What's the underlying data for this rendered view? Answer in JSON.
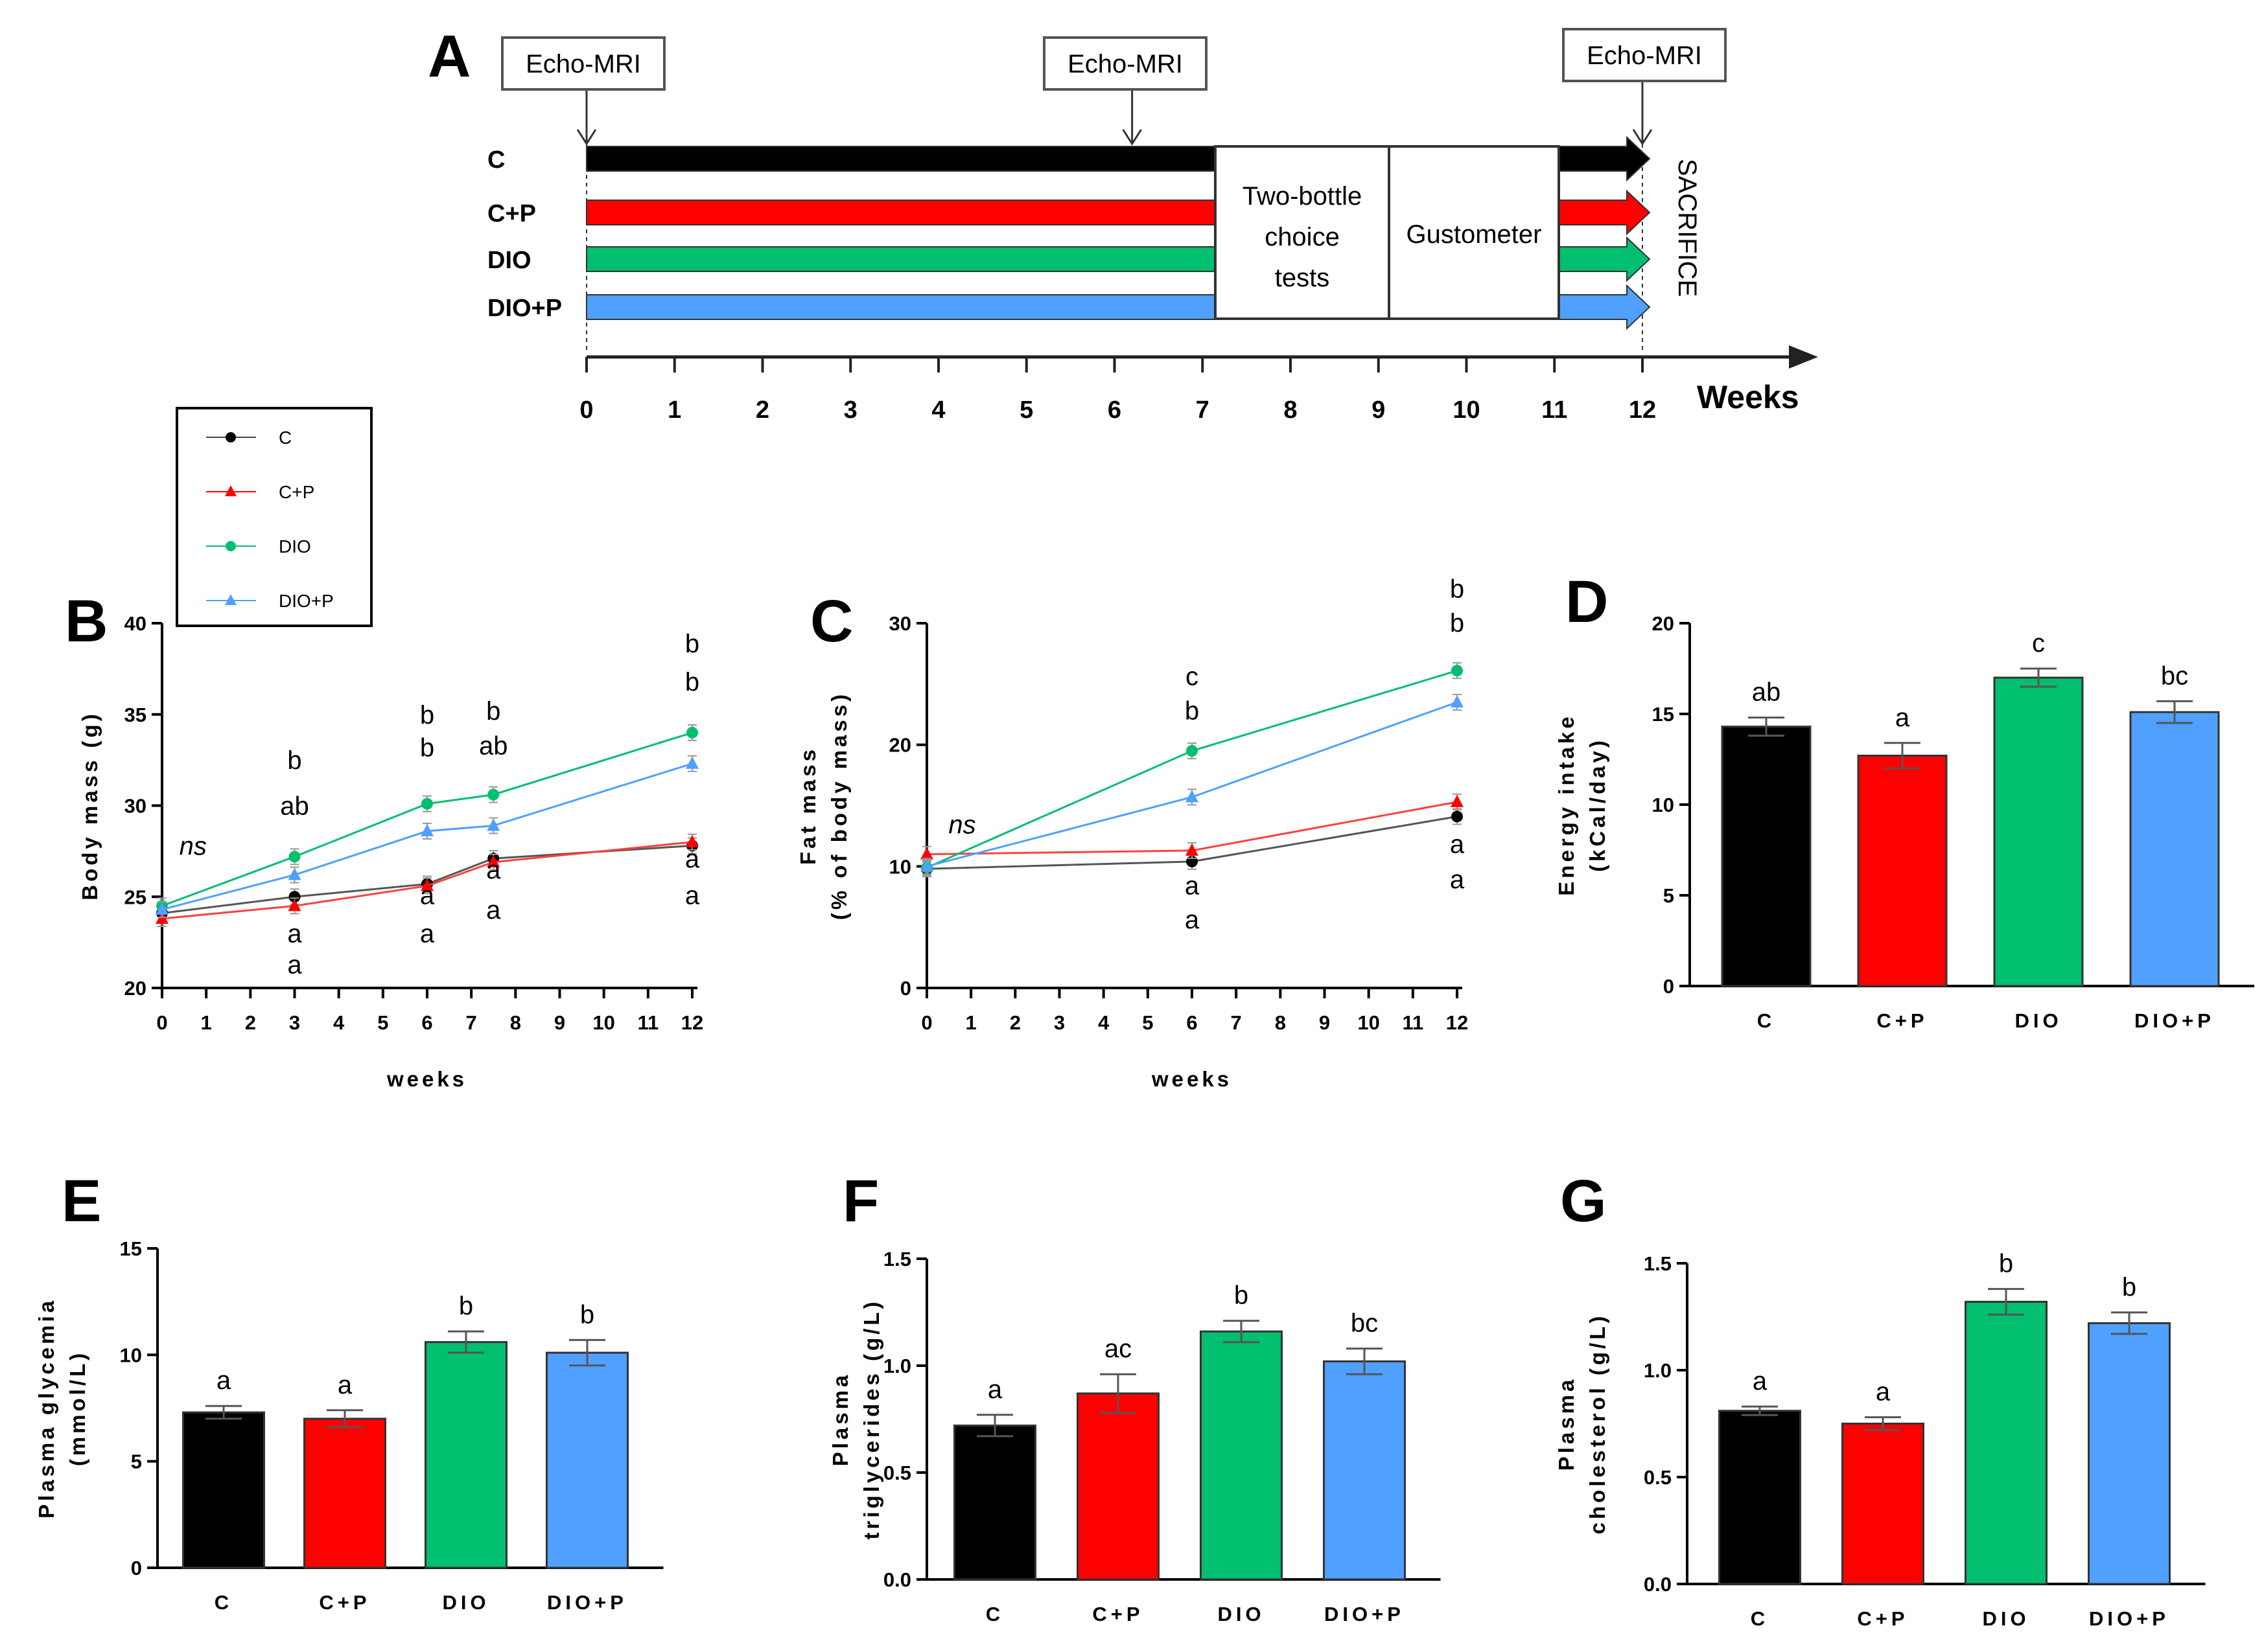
{
  "colors": {
    "C": "#000000",
    "C+P": "#ff0000",
    "DIO": "#00bf6f",
    "DIO+P": "#4fa0ff"
  },
  "timeline": {
    "label": "A",
    "echo_mri": "Echo-MRI",
    "groups": [
      "C",
      "C+P",
      "DIO",
      "DIO+P"
    ],
    "box1": [
      "Two-bottle",
      "choice",
      "tests"
    ],
    "box2": "Gustometer",
    "sacrifice": "SACRIFICE",
    "weeks_label": "Weeks",
    "weeks": [
      "0",
      "1",
      "2",
      "3",
      "4",
      "5",
      "6",
      "7",
      "8",
      "9",
      "10",
      "11",
      "12"
    ],
    "echo_weeks": [
      0,
      6.2,
      12
    ],
    "box1_range": [
      7.3,
      9.3
    ],
    "box2_range": [
      9.3,
      11.3
    ]
  },
  "legend": {
    "items": [
      "C",
      "C+P",
      "DIO",
      "DIO+P"
    ]
  },
  "chart_data": [
    {
      "id": "B",
      "type": "line",
      "xlabel": "weeks",
      "ylabel": "Body mass (g)",
      "xlim": [
        0,
        12
      ],
      "ylim": [
        20,
        40
      ],
      "xticks": [
        "0",
        "1",
        "2",
        "3",
        "4",
        "5",
        "6",
        "7",
        "8",
        "9",
        "10",
        "11",
        "12"
      ],
      "yticks": [
        "20",
        "25",
        "30",
        "35",
        "40"
      ],
      "x": [
        0,
        3,
        6,
        7.5,
        12
      ],
      "series": [
        {
          "name": "C",
          "values": [
            24.1,
            25.0,
            25.7,
            27.1,
            27.8
          ]
        },
        {
          "name": "C+P",
          "values": [
            23.8,
            24.5,
            25.6,
            26.9,
            28.0
          ]
        },
        {
          "name": "DIO",
          "values": [
            24.5,
            27.2,
            30.1,
            30.6,
            34.0
          ]
        },
        {
          "name": "DIO+P",
          "values": [
            24.3,
            26.2,
            28.6,
            28.9,
            32.3
          ]
        }
      ],
      "annotations": [
        {
          "x": 0.7,
          "y": 27.3,
          "text": "ns",
          "italic": true
        },
        {
          "x": 3,
          "y": 32.0,
          "text": "b"
        },
        {
          "x": 3,
          "y": 29.5,
          "text": "ab"
        },
        {
          "x": 3,
          "y": 22.5,
          "text": "a"
        },
        {
          "x": 3,
          "y": 20.8,
          "text": "a"
        },
        {
          "x": 6,
          "y": 34.5,
          "text": "b"
        },
        {
          "x": 6,
          "y": 32.7,
          "text": "b"
        },
        {
          "x": 6,
          "y": 24.6,
          "text": "a"
        },
        {
          "x": 6,
          "y": 22.5,
          "text": "a"
        },
        {
          "x": 7.5,
          "y": 34.7,
          "text": "b"
        },
        {
          "x": 7.5,
          "y": 32.8,
          "text": "ab"
        },
        {
          "x": 7.5,
          "y": 26.0,
          "text": "a"
        },
        {
          "x": 7.5,
          "y": 23.8,
          "text": "a"
        },
        {
          "x": 12,
          "y": 38.4,
          "text": "b"
        },
        {
          "x": 12,
          "y": 36.3,
          "text": "b"
        },
        {
          "x": 12,
          "y": 26.6,
          "text": "a"
        },
        {
          "x": 12,
          "y": 24.6,
          "text": "a"
        }
      ]
    },
    {
      "id": "C",
      "type": "line",
      "xlabel": "weeks",
      "ylabel": [
        "Fat mass",
        "(% of body mass)"
      ],
      "xlim": [
        0,
        12
      ],
      "ylim": [
        0,
        30
      ],
      "xticks": [
        "0",
        "1",
        "2",
        "3",
        "4",
        "5",
        "6",
        "7",
        "8",
        "9",
        "10",
        "11",
        "12"
      ],
      "yticks": [
        "0",
        "10",
        "20",
        "30"
      ],
      "x": [
        0,
        6,
        12
      ],
      "series": [
        {
          "name": "C",
          "values": [
            9.8,
            10.4,
            14.1
          ]
        },
        {
          "name": "C+P",
          "values": [
            11.0,
            11.3,
            15.3
          ]
        },
        {
          "name": "DIO",
          "values": [
            9.9,
            19.5,
            26.1
          ]
        },
        {
          "name": "DIO+P",
          "values": [
            10.0,
            15.7,
            23.5
          ]
        }
      ],
      "annotations": [
        {
          "x": 0.8,
          "y": 12.7,
          "text": "ns",
          "italic": true
        },
        {
          "x": 6,
          "y": 24.9,
          "text": "c"
        },
        {
          "x": 6,
          "y": 22.1,
          "text": "b"
        },
        {
          "x": 6,
          "y": 7.7,
          "text": "a"
        },
        {
          "x": 6,
          "y": 4.9,
          "text": "a"
        },
        {
          "x": 12,
          "y": 32.1,
          "text": "b"
        },
        {
          "x": 12,
          "y": 29.3,
          "text": "b"
        },
        {
          "x": 12,
          "y": 11.1,
          "text": "a"
        },
        {
          "x": 12,
          "y": 8.2,
          "text": "a"
        }
      ]
    },
    {
      "id": "D",
      "type": "bar",
      "ylabel": [
        "Energy intake",
        "(kCal/day)"
      ],
      "categories": [
        "C",
        "C+P",
        "DIO",
        "DIO+P"
      ],
      "values": [
        14.3,
        12.7,
        17.0,
        15.1
      ],
      "errors": [
        0.5,
        0.7,
        0.5,
        0.6
      ],
      "ylim": [
        0,
        20
      ],
      "yticks": [
        "0",
        "5",
        "10",
        "15",
        "20"
      ],
      "letters": [
        "ab",
        "a",
        "c",
        "bc"
      ]
    },
    {
      "id": "E",
      "type": "bar",
      "ylabel": [
        "Plasma glycemia",
        "(mmol/L)"
      ],
      "categories": [
        "C",
        "C+P",
        "DIO",
        "DIO+P"
      ],
      "values": [
        7.3,
        7.0,
        10.6,
        10.1
      ],
      "errors": [
        0.3,
        0.4,
        0.5,
        0.6
      ],
      "ylim": [
        0,
        15
      ],
      "yticks": [
        "0",
        "5",
        "10",
        "15"
      ],
      "letters": [
        "a",
        "a",
        "b",
        "b"
      ]
    },
    {
      "id": "F",
      "type": "bar",
      "ylabel": [
        "Plasma",
        "triglycerides (g/L)"
      ],
      "categories": [
        "C",
        "C+P",
        "DIO",
        "DIO+P"
      ],
      "values": [
        0.72,
        0.87,
        1.16,
        1.02
      ],
      "errors": [
        0.05,
        0.09,
        0.05,
        0.06
      ],
      "ylim": [
        0,
        1.5
      ],
      "yticks": [
        "0.0",
        "0.5",
        "1.0",
        "1.5"
      ],
      "letters": [
        "a",
        "ac",
        "b",
        "bc"
      ]
    },
    {
      "id": "G",
      "type": "bar",
      "ylabel": [
        "Plasma",
        "cholesterol (g/L)"
      ],
      "categories": [
        "C",
        "C+P",
        "DIO",
        "DIO+P"
      ],
      "values": [
        0.81,
        0.75,
        1.32,
        1.22
      ],
      "errors": [
        0.02,
        0.03,
        0.06,
        0.05
      ],
      "ylim": [
        0,
        1.5
      ],
      "yticks": [
        "0.0",
        "0.5",
        "1.0",
        "1.5"
      ],
      "letters": [
        "a",
        "a",
        "b",
        "b"
      ]
    }
  ]
}
